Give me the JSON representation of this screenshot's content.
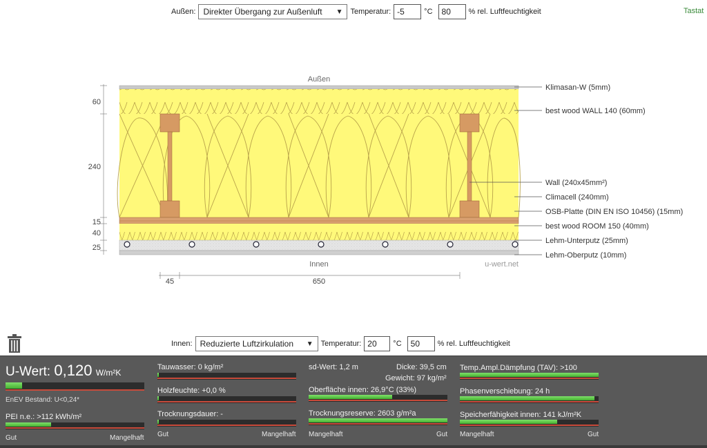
{
  "outside": {
    "label": "Außen:",
    "condition": "Direkter Übergang zur Außenluft",
    "temp_label": "Temperatur:",
    "temp": "-5",
    "temp_unit": "°C",
    "humidity": "80",
    "humidity_unit": "% rel. Luftfeuchtigkeit"
  },
  "tastat": "Tastat",
  "inside": {
    "label": "Innen:",
    "condition": "Reduzierte Luftzirkulation",
    "temp_label": "Temperatur:",
    "temp": "20",
    "temp_unit": "°C",
    "humidity": "50",
    "humidity_unit": "% rel. Luftfeuchtigkeit"
  },
  "drawing": {
    "top_label": "Außen",
    "bottom_label": "Innen",
    "watermark": "u-wert.net",
    "dims_left": [
      "60",
      "240",
      "15",
      "40",
      "25"
    ],
    "dims_bottom": [
      "45",
      "650"
    ],
    "layers": [
      "Klimasan-W (5mm)",
      "best wood WALL 140 (60mm)",
      "Wall (240x45mm²)",
      "Climacell (240mm)",
      "OSB-Platte (DIN EN ISO 10456) (15mm)",
      "best wood ROOM 150 (40mm)",
      "Lehm-Unterputz (25mm)",
      "Lehm-Oberputz (10mm)"
    ]
  },
  "results": {
    "uwert_label": "U-Wert:",
    "uwert_value": "0,120",
    "uwert_unit": "W/m²K",
    "uwert_fill": 0.12,
    "enev": "EnEV Bestand: U<0,24*",
    "pei": "PEI n.e.: >112 kWh/m²",
    "pei_fill": 0.33,
    "tauwasser": "Tauwasser: 0 kg/m²",
    "tauwasser_fill": 0.01,
    "holzfeuchte": "Holzfeuchte: +0,0 %",
    "holzfeuchte_fill": 0.01,
    "trocknungsdauer": "Trocknungsdauer: -",
    "trocknungsdauer_fill": 0.01,
    "sd_wert": "sd-Wert: 1,2 m",
    "dicke": "Dicke: 39,5 cm",
    "gewicht": "Gewicht: 97 kg/m²",
    "oberflaeche": "Oberfläche innen: 26,9°C (33%)",
    "oberflaeche_fill": 0.6,
    "trocknungsreserve": "Trocknungsreserve: 2603 g/m²a",
    "trocknungsreserve_fill": 1.0,
    "tav": "Temp.Ampl.Dämpfung (TAV): >100",
    "tav_fill": 1.0,
    "phasen": "Phasenverschiebung: 24 h",
    "phasen_fill": 0.97,
    "speicher": "Speicherfähigkeit innen: 141 kJ/m²K",
    "speicher_fill": 0.7,
    "gut": "Gut",
    "mangelhaft": "Mangelhaft"
  }
}
